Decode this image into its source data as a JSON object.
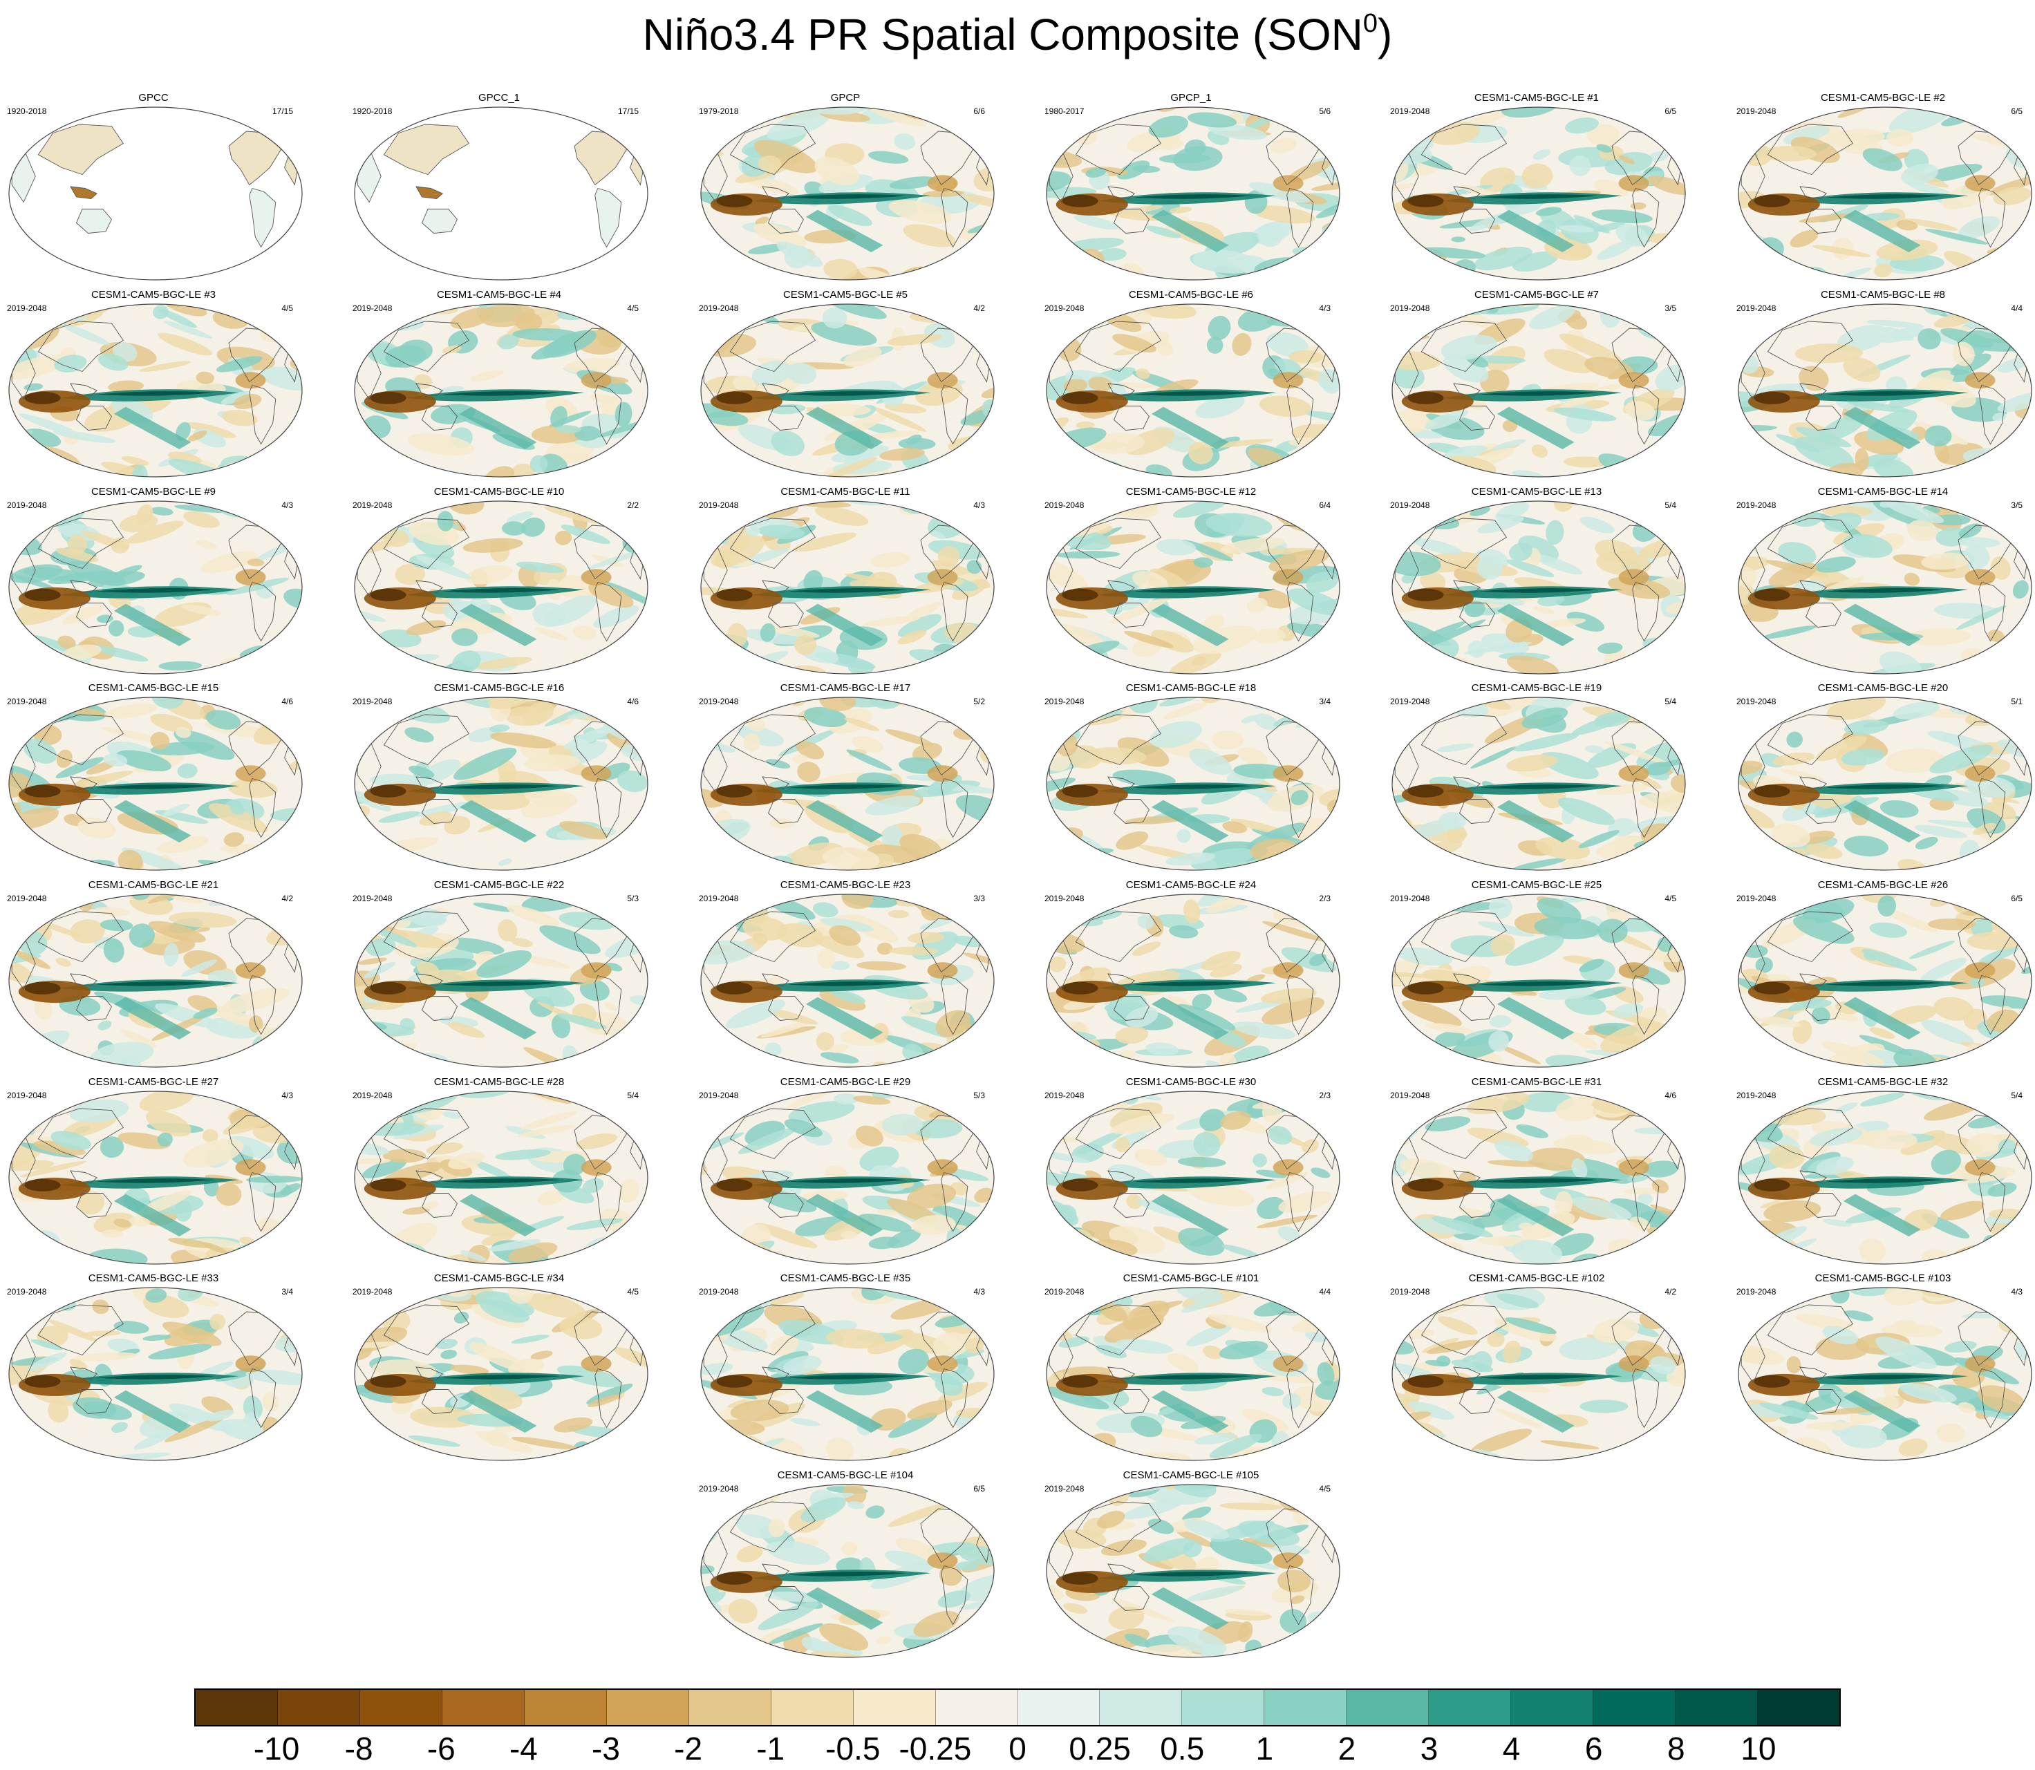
{
  "title": {
    "main": "Niño3.4 PR Spatial Composite (SON",
    "superscript": "0",
    "close": ")"
  },
  "panels": [
    {
      "title": "GPCC",
      "period": "1920-2018",
      "count": "17/15",
      "coverage": "land"
    },
    {
      "title": "GPCC_1",
      "period": "1920-2018",
      "count": "17/15",
      "coverage": "land"
    },
    {
      "title": "GPCP",
      "period": "1979-2018",
      "count": "6/6",
      "coverage": "global"
    },
    {
      "title": "GPCP_1",
      "period": "1980-2017",
      "count": "5/6",
      "coverage": "global"
    },
    {
      "title": "CESM1-CAM5-BGC-LE #1",
      "period": "2019-2048",
      "count": "6/5",
      "coverage": "global"
    },
    {
      "title": "CESM1-CAM5-BGC-LE #2",
      "period": "2019-2048",
      "count": "6/5",
      "coverage": "global"
    },
    {
      "title": "CESM1-CAM5-BGC-LE #3",
      "period": "2019-2048",
      "count": "4/5",
      "coverage": "global"
    },
    {
      "title": "CESM1-CAM5-BGC-LE #4",
      "period": "2019-2048",
      "count": "4/5",
      "coverage": "global"
    },
    {
      "title": "CESM1-CAM5-BGC-LE #5",
      "period": "2019-2048",
      "count": "4/2",
      "coverage": "global"
    },
    {
      "title": "CESM1-CAM5-BGC-LE #6",
      "period": "2019-2048",
      "count": "4/3",
      "coverage": "global"
    },
    {
      "title": "CESM1-CAM5-BGC-LE #7",
      "period": "2019-2048",
      "count": "3/5",
      "coverage": "global"
    },
    {
      "title": "CESM1-CAM5-BGC-LE #8",
      "period": "2019-2048",
      "count": "4/4",
      "coverage": "global"
    },
    {
      "title": "CESM1-CAM5-BGC-LE #9",
      "period": "2019-2048",
      "count": "4/3",
      "coverage": "global"
    },
    {
      "title": "CESM1-CAM5-BGC-LE #10",
      "period": "2019-2048",
      "count": "2/2",
      "coverage": "global"
    },
    {
      "title": "CESM1-CAM5-BGC-LE #11",
      "period": "2019-2048",
      "count": "4/3",
      "coverage": "global"
    },
    {
      "title": "CESM1-CAM5-BGC-LE #12",
      "period": "2019-2048",
      "count": "6/4",
      "coverage": "global"
    },
    {
      "title": "CESM1-CAM5-BGC-LE #13",
      "period": "2019-2048",
      "count": "5/4",
      "coverage": "global"
    },
    {
      "title": "CESM1-CAM5-BGC-LE #14",
      "period": "2019-2048",
      "count": "3/5",
      "coverage": "global"
    },
    {
      "title": "CESM1-CAM5-BGC-LE #15",
      "period": "2019-2048",
      "count": "4/6",
      "coverage": "global"
    },
    {
      "title": "CESM1-CAM5-BGC-LE #16",
      "period": "2019-2048",
      "count": "4/6",
      "coverage": "global"
    },
    {
      "title": "CESM1-CAM5-BGC-LE #17",
      "period": "2019-2048",
      "count": "5/2",
      "coverage": "global"
    },
    {
      "title": "CESM1-CAM5-BGC-LE #18",
      "period": "2019-2048",
      "count": "3/4",
      "coverage": "global"
    },
    {
      "title": "CESM1-CAM5-BGC-LE #19",
      "period": "2019-2048",
      "count": "5/4",
      "coverage": "global"
    },
    {
      "title": "CESM1-CAM5-BGC-LE #20",
      "period": "2019-2048",
      "count": "5/1",
      "coverage": "global"
    },
    {
      "title": "CESM1-CAM5-BGC-LE #21",
      "period": "2019-2048",
      "count": "4/2",
      "coverage": "global"
    },
    {
      "title": "CESM1-CAM5-BGC-LE #22",
      "period": "2019-2048",
      "count": "5/3",
      "coverage": "global"
    },
    {
      "title": "CESM1-CAM5-BGC-LE #23",
      "period": "2019-2048",
      "count": "3/3",
      "coverage": "global"
    },
    {
      "title": "CESM1-CAM5-BGC-LE #24",
      "period": "2019-2048",
      "count": "2/3",
      "coverage": "global"
    },
    {
      "title": "CESM1-CAM5-BGC-LE #25",
      "period": "2019-2048",
      "count": "4/5",
      "coverage": "global"
    },
    {
      "title": "CESM1-CAM5-BGC-LE #26",
      "period": "2019-2048",
      "count": "6/5",
      "coverage": "global"
    },
    {
      "title": "CESM1-CAM5-BGC-LE #27",
      "period": "2019-2048",
      "count": "4/3",
      "coverage": "global"
    },
    {
      "title": "CESM1-CAM5-BGC-LE #28",
      "period": "2019-2048",
      "count": "5/4",
      "coverage": "global"
    },
    {
      "title": "CESM1-CAM5-BGC-LE #29",
      "period": "2019-2048",
      "count": "5/3",
      "coverage": "global"
    },
    {
      "title": "CESM1-CAM5-BGC-LE #30",
      "period": "2019-2048",
      "count": "2/3",
      "coverage": "global"
    },
    {
      "title": "CESM1-CAM5-BGC-LE #31",
      "period": "2019-2048",
      "count": "4/6",
      "coverage": "global"
    },
    {
      "title": "CESM1-CAM5-BGC-LE #32",
      "period": "2019-2048",
      "count": "5/4",
      "coverage": "global"
    },
    {
      "title": "CESM1-CAM5-BGC-LE #33",
      "period": "2019-2048",
      "count": "3/4",
      "coverage": "global"
    },
    {
      "title": "CESM1-CAM5-BGC-LE #34",
      "period": "2019-2048",
      "count": "4/5",
      "coverage": "global"
    },
    {
      "title": "CESM1-CAM5-BGC-LE #35",
      "period": "2019-2048",
      "count": "4/3",
      "coverage": "global"
    },
    {
      "title": "CESM1-CAM5-BGC-LE #101",
      "period": "2019-2048",
      "count": "4/4",
      "coverage": "global"
    },
    {
      "title": "CESM1-CAM5-BGC-LE #102",
      "period": "2019-2048",
      "count": "4/2",
      "coverage": "global"
    },
    {
      "title": "CESM1-CAM5-BGC-LE #103",
      "period": "2019-2048",
      "count": "4/3",
      "coverage": "global"
    },
    {
      "title": "CESM1-CAM5-BGC-LE #104",
      "period": "2019-2048",
      "count": "6/5",
      "coverage": "global"
    },
    {
      "title": "CESM1-CAM5-BGC-LE #105",
      "period": "2019-2048",
      "count": "4/5",
      "coverage": "global"
    }
  ],
  "colorbar": {
    "colors": [
      "#5c3509",
      "#7a4508",
      "#8f520b",
      "#a8681f",
      "#bd8434",
      "#d1a458",
      "#e3c78b",
      "#efdcaa",
      "#f6eacb",
      "#f5f1e7",
      "#e8f3f0",
      "#cdeae4",
      "#ace0d6",
      "#87d0c2",
      "#5ab8a7",
      "#2e9c8b",
      "#14806f",
      "#016a5c",
      "#01574a",
      "#003b32"
    ],
    "labels": [
      "-10",
      "-8",
      "-6",
      "-4",
      "-3",
      "-2",
      "-1",
      "-0.5",
      "-0.25",
      "0",
      "0.25",
      "0.5",
      "1",
      "2",
      "3",
      "4",
      "6",
      "8",
      "10"
    ]
  }
}
